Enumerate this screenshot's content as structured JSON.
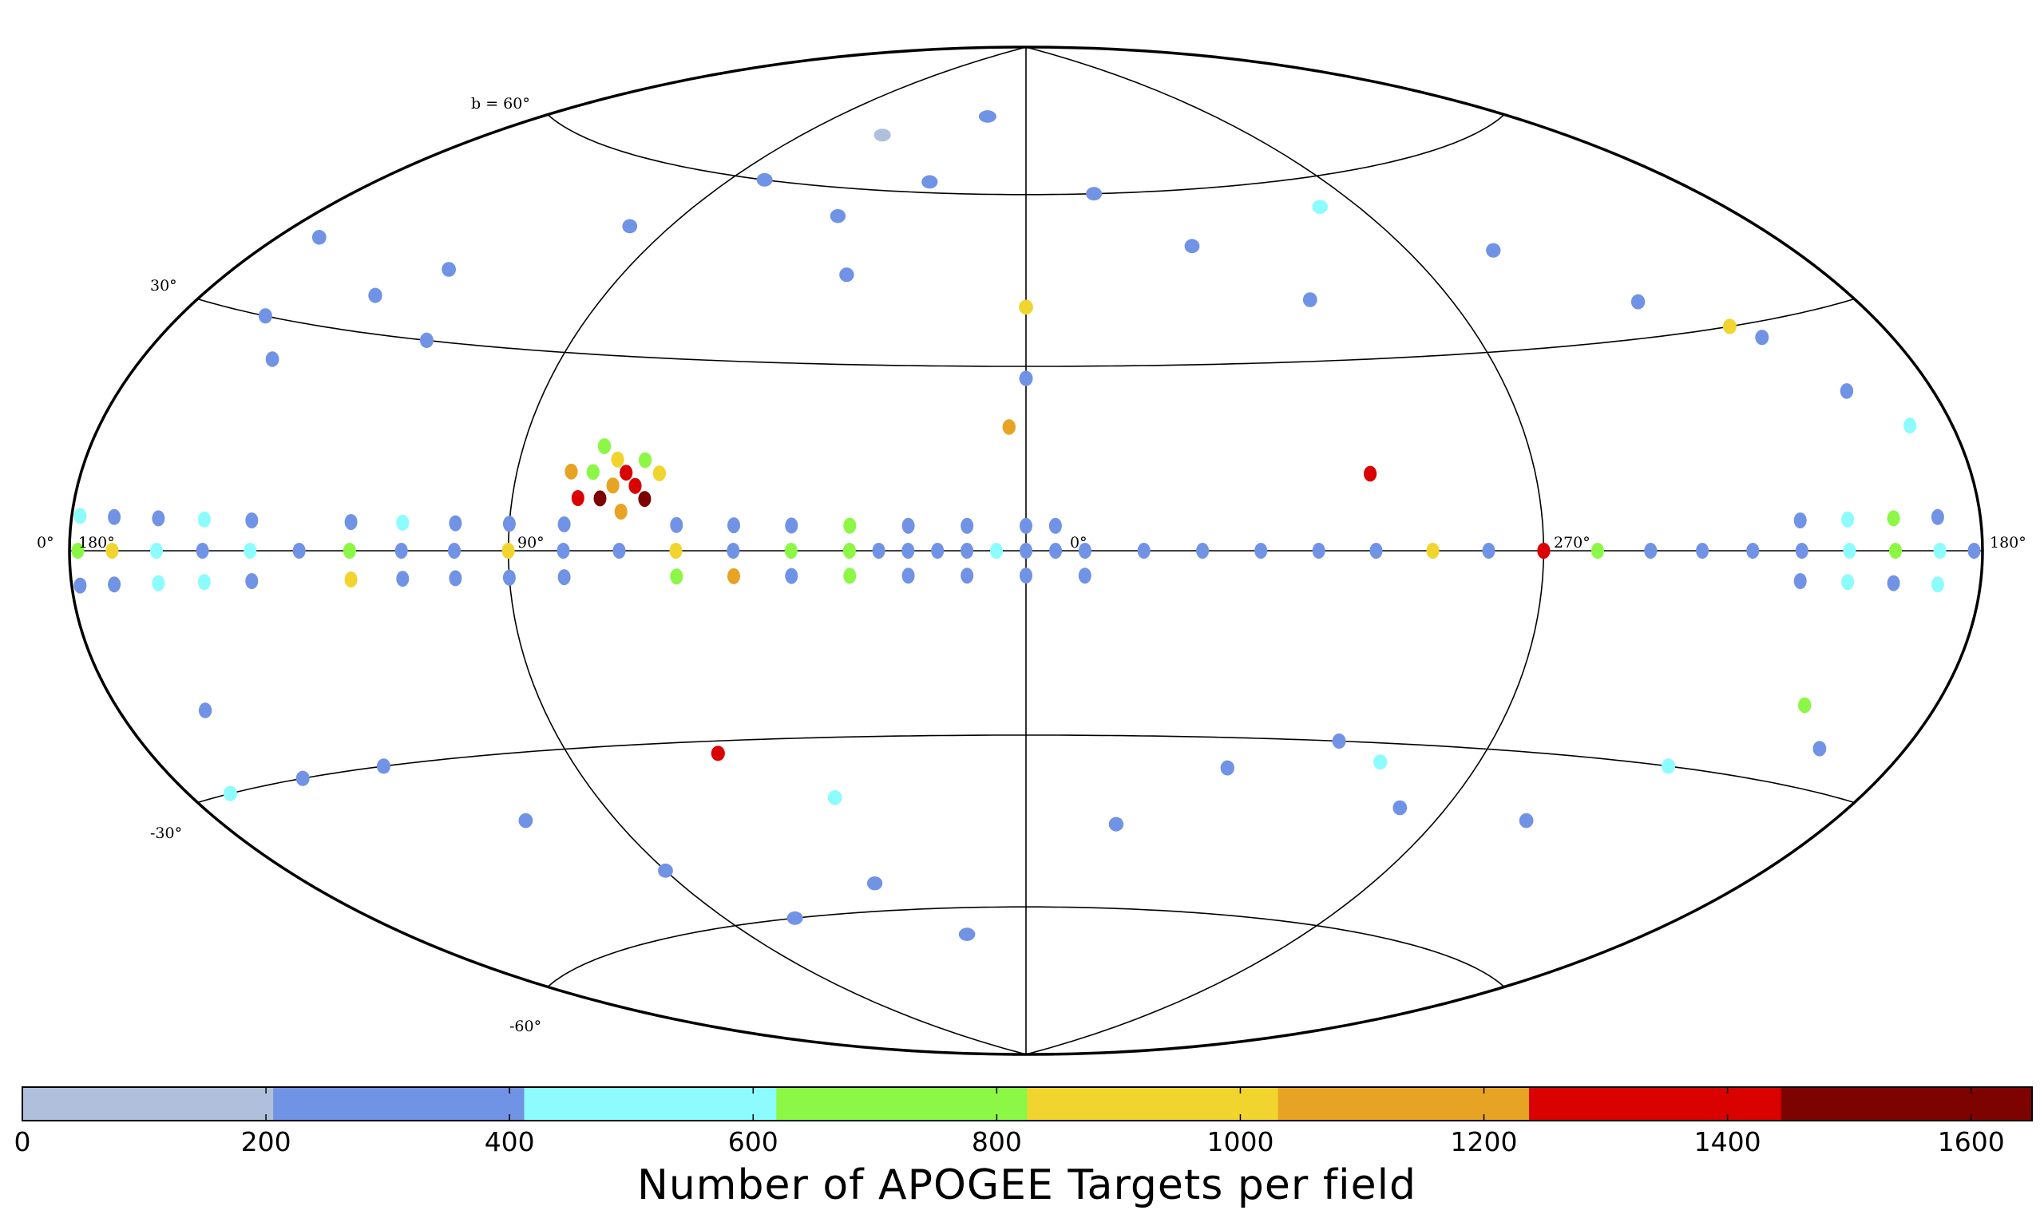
{
  "chart_data": {
    "type": "scatter",
    "projection": "Aitoff/Hammer all-sky, galactic coordinates",
    "grid": true,
    "latitude_labels": [
      "b = 60°",
      "30°",
      "-30°",
      "-60°"
    ],
    "longitude_labels": {
      "left_edge": "0°",
      "l180_left": "180°",
      "l90": "90°",
      "l0": "0°",
      "l270": "270°",
      "right_edge": "180°"
    },
    "colorbar": {
      "title": "Number of APOGEE Targets per field",
      "range": [
        0,
        1650
      ],
      "tick_values": [
        0,
        200,
        400,
        600,
        800,
        1000,
        1200,
        1400,
        1600
      ],
      "tick_labels": [
        "0",
        "200",
        "400",
        "600",
        "800",
        "1000",
        "1200",
        "1400",
        "1600"
      ],
      "bins": [
        {
          "from": 0,
          "to": 206,
          "color": "#b0c0dc"
        },
        {
          "from": 206,
          "to": 412,
          "color": "#7193e6"
        },
        {
          "from": 412,
          "to": 619,
          "color": "#8cfcfe"
        },
        {
          "from": 619,
          "to": 825,
          "color": "#8cf745"
        },
        {
          "from": 825,
          "to": 1031,
          "color": "#f1d42d"
        },
        {
          "from": 1031,
          "to": 1237,
          "color": "#e7a324"
        },
        {
          "from": 1237,
          "to": 1444,
          "color": "#da0201"
        },
        {
          "from": 1444,
          "to": 1650,
          "color": "#7d0300"
        }
      ]
    },
    "fields": [
      {
        "l": 90,
        "b": 0,
        "n": 900
      },
      {
        "l": 80,
        "b": 0,
        "n": 300
      },
      {
        "l": 70,
        "b": 0,
        "n": 300
      },
      {
        "l": 60,
        "b": 0,
        "n": 900
      },
      {
        "l": 50,
        "b": 0,
        "n": 300
      },
      {
        "l": 40,
        "b": 0,
        "n": 700
      },
      {
        "l": 30,
        "b": 0,
        "n": 700
      },
      {
        "l": 25,
        "b": 0,
        "n": 300
      },
      {
        "l": 20,
        "b": 0,
        "n": 300
      },
      {
        "l": 15,
        "b": 0,
        "n": 300
      },
      {
        "l": 10,
        "b": 0,
        "n": 300
      },
      {
        "l": 5,
        "b": 0,
        "n": 450
      },
      {
        "l": 0,
        "b": 0,
        "n": 300
      },
      {
        "l": 355,
        "b": 0,
        "n": 300
      },
      {
        "l": 350,
        "b": 0,
        "n": 300
      },
      {
        "l": 340,
        "b": 0,
        "n": 300
      },
      {
        "l": 330,
        "b": 0,
        "n": 300
      },
      {
        "l": 320,
        "b": 0,
        "n": 300
      },
      {
        "l": 310,
        "b": 0,
        "n": 300
      },
      {
        "l": 300,
        "b": 0,
        "n": 300
      },
      {
        "l": 290,
        "b": 0,
        "n": 900
      },
      {
        "l": 280,
        "b": 0,
        "n": 300
      },
      {
        "l": 270,
        "b": 0,
        "n": 1300
      },
      {
        "l": 260,
        "b": 0,
        "n": 700
      },
      {
        "l": 250,
        "b": 0,
        "n": 300
      },
      {
        "l": 240,
        "b": 0,
        "n": 300
      },
      {
        "l": 230,
        "b": 0,
        "n": 300
      },
      {
        "l": 220,
        "b": 0,
        "n": 300
      },
      {
        "l": 210,
        "b": 0,
        "n": 500
      },
      {
        "l": 200,
        "b": 0,
        "n": 700
      },
      {
        "l": 190,
        "b": 0,
        "n": 500
      },
      {
        "l": 182,
        "b": 0,
        "n": 300
      },
      {
        "l": 178,
        "b": 0,
        "n": 700
      },
      {
        "l": 170,
        "b": 0,
        "n": 950
      },
      {
        "l": 160,
        "b": 0,
        "n": 500
      },
      {
        "l": 150,
        "b": 0,
        "n": 300
      },
      {
        "l": 140,
        "b": 0,
        "n": 500
      },
      {
        "l": 130,
        "b": 0,
        "n": 300
      },
      {
        "l": 120,
        "b": 0,
        "n": 700
      },
      {
        "l": 110,
        "b": 0,
        "n": 300
      },
      {
        "l": 100,
        "b": 0,
        "n": 300
      },
      {
        "l": 90,
        "b": 4,
        "n": 300
      },
      {
        "l": 90,
        "b": -4,
        "n": 300
      },
      {
        "l": 80,
        "b": 4,
        "n": 300
      },
      {
        "l": 80,
        "b": -4,
        "n": 300
      },
      {
        "l": 60,
        "b": 4,
        "n": 300
      },
      {
        "l": 60,
        "b": -4,
        "n": 700
      },
      {
        "l": 50,
        "b": 4,
        "n": 300
      },
      {
        "l": 50,
        "b": -4,
        "n": 1100
      },
      {
        "l": 40,
        "b": 4,
        "n": 300
      },
      {
        "l": 40,
        "b": -4,
        "n": 300
      },
      {
        "l": 30,
        "b": 4,
        "n": 700
      },
      {
        "l": 30,
        "b": -4,
        "n": 700
      },
      {
        "l": 20,
        "b": 4,
        "n": 300
      },
      {
        "l": 20,
        "b": -4,
        "n": 300
      },
      {
        "l": 10,
        "b": 4,
        "n": 300
      },
      {
        "l": 10,
        "b": -4,
        "n": 300
      },
      {
        "l": 0,
        "b": 4,
        "n": 300
      },
      {
        "l": 0,
        "b": -4,
        "n": 300
      },
      {
        "l": 355,
        "b": 4,
        "n": 300
      },
      {
        "l": 350,
        "b": -4,
        "n": 300
      },
      {
        "l": 140,
        "b": 4,
        "n": 300
      },
      {
        "l": 140,
        "b": -4,
        "n": 300
      },
      {
        "l": 150,
        "b": 4,
        "n": 500
      },
      {
        "l": 150,
        "b": -4,
        "n": 500
      },
      {
        "l": 160,
        "b": 4,
        "n": 300
      },
      {
        "l": 160,
        "b": -4,
        "n": 500
      },
      {
        "l": 170,
        "b": 4,
        "n": 300
      },
      {
        "l": 170,
        "b": -4,
        "n": 300
      },
      {
        "l": 178,
        "b": 4,
        "n": 500
      },
      {
        "l": 178,
        "b": -4,
        "n": 300
      },
      {
        "l": 120,
        "b": 4,
        "n": 300
      },
      {
        "l": 120,
        "b": -4,
        "n": 900
      },
      {
        "l": 110,
        "b": 4,
        "n": 500
      },
      {
        "l": 110,
        "b": -4,
        "n": 300
      },
      {
        "l": 100,
        "b": 4,
        "n": 300
      },
      {
        "l": 100,
        "b": -4,
        "n": 300
      },
      {
        "l": 190,
        "b": 4,
        "n": 300
      },
      {
        "l": 190,
        "b": -4,
        "n": 500
      },
      {
        "l": 200,
        "b": 4,
        "n": 700
      },
      {
        "l": 200,
        "b": -4,
        "n": 300
      },
      {
        "l": 210,
        "b": 4,
        "n": 500
      },
      {
        "l": 210,
        "b": -4,
        "n": 500
      },
      {
        "l": 220,
        "b": 4,
        "n": 300
      },
      {
        "l": 220,
        "b": -4,
        "n": 300
      },
      {
        "l": 72,
        "b": 10,
        "n": 1100
      },
      {
        "l": 70,
        "b": 12,
        "n": 1300
      },
      {
        "l": 74,
        "b": 8,
        "n": 1600
      },
      {
        "l": 68,
        "b": 10,
        "n": 1300
      },
      {
        "l": 76,
        "b": 12,
        "n": 700
      },
      {
        "l": 66,
        "b": 8,
        "n": 1600
      },
      {
        "l": 70,
        "b": 6,
        "n": 1100
      },
      {
        "l": 64,
        "b": 12,
        "n": 900
      },
      {
        "l": 78,
        "b": 8,
        "n": 1300
      },
      {
        "l": 72,
        "b": 14,
        "n": 900
      },
      {
        "l": 67,
        "b": 14,
        "n": 700
      },
      {
        "l": 75,
        "b": 16,
        "n": 700
      },
      {
        "l": 80,
        "b": 12,
        "n": 1100
      },
      {
        "l": 3,
        "b": 20,
        "n": 1100
      },
      {
        "l": 0,
        "b": 28,
        "n": 300
      },
      {
        "l": 0,
        "b": 40,
        "n": 900
      },
      {
        "l": 300,
        "b": 12,
        "n": 1300
      },
      {
        "l": 270,
        "b": 0,
        "n": 1300
      },
      {
        "l": 60,
        "b": -32,
        "n": 1400
      },
      {
        "l": 40,
        "b": -40,
        "n": 500
      },
      {
        "l": 120,
        "b": 30,
        "n": 300
      },
      {
        "l": 130,
        "b": 40,
        "n": 300
      },
      {
        "l": 100,
        "b": 50,
        "n": 300
      },
      {
        "l": 80,
        "b": 60,
        "n": 300
      },
      {
        "l": 60,
        "b": 70,
        "n": 100
      },
      {
        "l": 50,
        "b": 55,
        "n": 300
      },
      {
        "l": 40,
        "b": 45,
        "n": 300
      },
      {
        "l": 30,
        "b": 62,
        "n": 300
      },
      {
        "l": 20,
        "b": 75,
        "n": 300
      },
      {
        "l": 340,
        "b": 60,
        "n": 300
      },
      {
        "l": 320,
        "b": 50,
        "n": 300
      },
      {
        "l": 300,
        "b": 40,
        "n": 300
      },
      {
        "l": 280,
        "b": 55,
        "n": 500
      },
      {
        "l": 250,
        "b": 45,
        "n": 300
      },
      {
        "l": 230,
        "b": 35,
        "n": 300
      },
      {
        "l": 210,
        "b": 28,
        "n": 300
      },
      {
        "l": 200,
        "b": 20,
        "n": 300
      },
      {
        "l": 190,
        "b": 15,
        "n": 500
      },
      {
        "l": 215,
        "b": 30,
        "n": 900
      },
      {
        "l": 160,
        "b": 30,
        "n": 300
      },
      {
        "l": 150,
        "b": 25,
        "n": 300
      },
      {
        "l": 140,
        "b": 35,
        "n": 300
      },
      {
        "l": 170,
        "b": 40,
        "n": 300
      },
      {
        "l": 130,
        "b": -30,
        "n": 300
      },
      {
        "l": 110,
        "b": -40,
        "n": 300
      },
      {
        "l": 90,
        "b": -50,
        "n": 300
      },
      {
        "l": 70,
        "b": -60,
        "n": 300
      },
      {
        "l": 40,
        "b": -55,
        "n": 300
      },
      {
        "l": 20,
        "b": -65,
        "n": 300
      },
      {
        "l": 340,
        "b": -45,
        "n": 300
      },
      {
        "l": 320,
        "b": -35,
        "n": 300
      },
      {
        "l": 300,
        "b": -30,
        "n": 300
      },
      {
        "l": 290,
        "b": -33,
        "n": 500
      },
      {
        "l": 280,
        "b": -40,
        "n": 300
      },
      {
        "l": 250,
        "b": -40,
        "n": 300
      },
      {
        "l": 230,
        "b": -30,
        "n": 500
      },
      {
        "l": 210,
        "b": -20,
        "n": 700
      },
      {
        "l": 200,
        "b": -25,
        "n": 300
      },
      {
        "l": 160,
        "b": -20,
        "n": 300
      },
      {
        "l": 150,
        "b": -30,
        "n": 300
      },
      {
        "l": 170,
        "b": -30,
        "n": 500
      }
    ]
  }
}
